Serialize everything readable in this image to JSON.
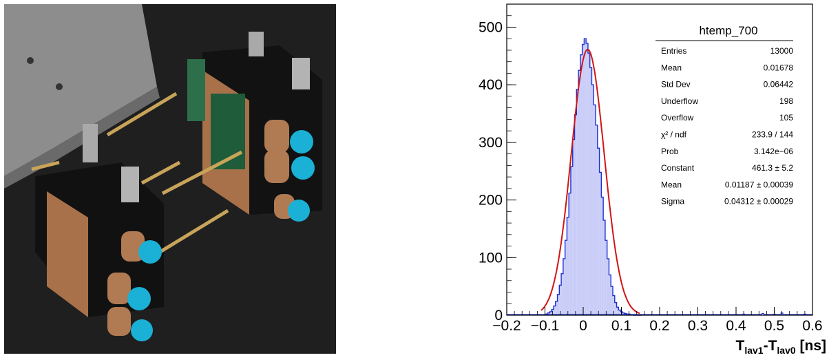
{
  "figure": {
    "photo": {
      "subject": "detector modules",
      "colors": {
        "background": "#1f1f1f",
        "plate": "#8b8b8b",
        "housing": "#121212",
        "copper": "#b07a52",
        "connector": "#1bb0d6",
        "standoff": "#a9a9a9",
        "brass": "#c8a45a"
      }
    }
  },
  "chart_data": {
    "type": "histogram",
    "title": "",
    "xlabel": "T_lav1-T_lav0 [ns]",
    "xlabel_parts": {
      "a": "T",
      "a_sub": "lav1",
      "dash": "-",
      "b": "T",
      "b_sub": "lav0",
      "unit": " [ns]"
    },
    "ylabel": "",
    "xlim": [
      -0.2,
      0.6
    ],
    "ylim": [
      0,
      540
    ],
    "x_ticks": [
      "−0.2",
      "−0.1",
      "0",
      "0.1",
      "0.2",
      "0.3",
      "0.4",
      "0.5",
      "0.6"
    ],
    "y_ticks": [
      "0",
      "100",
      "200",
      "300",
      "400",
      "500"
    ],
    "grid": false,
    "bin_width": 0.005,
    "x": [
      -0.1,
      -0.095,
      -0.09,
      -0.085,
      -0.08,
      -0.075,
      -0.07,
      -0.065,
      -0.06,
      -0.055,
      -0.05,
      -0.045,
      -0.04,
      -0.035,
      -0.03,
      -0.025,
      -0.02,
      -0.015,
      -0.01,
      -0.005,
      0.0,
      0.005,
      0.01,
      0.015,
      0.02,
      0.025,
      0.03,
      0.035,
      0.04,
      0.045,
      0.05,
      0.055,
      0.06,
      0.065,
      0.07,
      0.075,
      0.08,
      0.085,
      0.09,
      0.095,
      0.1,
      0.105,
      0.11,
      0.115,
      0.12,
      0.125,
      0.13,
      0.135,
      0.14,
      0.145,
      0.15
    ],
    "counts": [
      1,
      2,
      4,
      6,
      10,
      16,
      24,
      36,
      52,
      72,
      98,
      130,
      170,
      212,
      258,
      305,
      348,
      392,
      425,
      452,
      470,
      480,
      472,
      455,
      430,
      400,
      365,
      330,
      290,
      248,
      205,
      165,
      130,
      98,
      70,
      50,
      34,
      22,
      14,
      9,
      6,
      4,
      3,
      2,
      2,
      1,
      1,
      0,
      1,
      0,
      0
    ],
    "tail_x": [
      0.42,
      0.455,
      0.47,
      0.5,
      0.52,
      0.555,
      0.58
    ],
    "tail_counts": [
      2,
      1,
      3,
      2,
      4,
      1,
      2
    ],
    "fit": {
      "function": "gaus",
      "constant": 461.3,
      "mean": 0.01187,
      "sigma": 0.04312
    },
    "colors": {
      "fill": "#c9cdf7",
      "histogram_line": "#1c2fd4",
      "fit_line": "#d01515",
      "axis": "#000000"
    },
    "stats_box": {
      "title": "htemp_700",
      "rows": [
        {
          "label": "Entries",
          "value": "13000"
        },
        {
          "label": "Mean",
          "value": "0.01678"
        },
        {
          "label": "Std Dev",
          "value": "0.06442"
        },
        {
          "label": "Underflow",
          "value": "198"
        },
        {
          "label": "Overflow",
          "value": "105"
        },
        {
          "label": "χ² / ndf",
          "value": "233.9 / 144"
        },
        {
          "label": "Prob",
          "value": "3.142e−06"
        },
        {
          "label": "Constant",
          "value": "461.3 ± 5.2"
        },
        {
          "label": "Mean",
          "value": "0.01187 ± 0.00039"
        },
        {
          "label": "Sigma",
          "value": "0.04312 ± 0.00029"
        }
      ]
    }
  }
}
